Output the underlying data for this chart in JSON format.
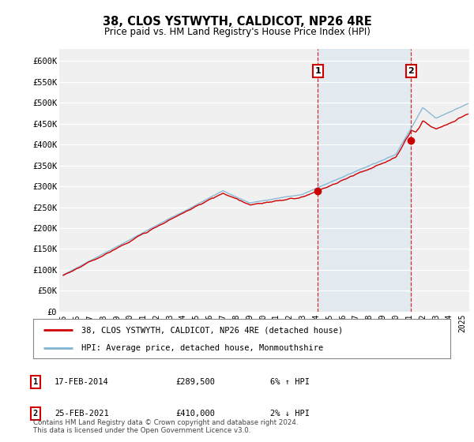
{
  "title": "38, CLOS YSTWYTH, CALDICOT, NP26 4RE",
  "subtitle": "Price paid vs. HM Land Registry's House Price Index (HPI)",
  "ylabel_ticks": [
    "£0",
    "£50K",
    "£100K",
    "£150K",
    "£200K",
    "£250K",
    "£300K",
    "£350K",
    "£400K",
    "£450K",
    "£500K",
    "£550K",
    "£600K"
  ],
  "ytick_values": [
    0,
    50000,
    100000,
    150000,
    200000,
    250000,
    300000,
    350000,
    400000,
    450000,
    500000,
    550000,
    600000
  ],
  "ylim": [
    0,
    630000
  ],
  "xlim_start": 1994.7,
  "xlim_end": 2025.5,
  "red_line_color": "#cc0000",
  "blue_line_color": "#7fb3d3",
  "shaded_color": "#c8dff0",
  "marker1_x": 2014.12,
  "marker1_y": 289500,
  "marker2_x": 2021.12,
  "marker2_y": 410000,
  "annotation1_date": "17-FEB-2014",
  "annotation1_price": "£289,500",
  "annotation1_hpi": "6% ↑ HPI",
  "annotation2_date": "25-FEB-2021",
  "annotation2_price": "£410,000",
  "annotation2_hpi": "2% ↓ HPI",
  "legend_line1": "38, CLOS YSTWYTH, CALDICOT, NP26 4RE (detached house)",
  "legend_line2": "HPI: Average price, detached house, Monmouthshire",
  "footer": "Contains HM Land Registry data © Crown copyright and database right 2024.\nThis data is licensed under the Open Government Licence v3.0.",
  "x_ticks": [
    1995,
    1996,
    1997,
    1998,
    1999,
    2000,
    2001,
    2002,
    2003,
    2004,
    2005,
    2006,
    2007,
    2008,
    2009,
    2010,
    2011,
    2012,
    2013,
    2014,
    2015,
    2016,
    2017,
    2018,
    2019,
    2020,
    2021,
    2022,
    2023,
    2024,
    2025
  ],
  "background_color": "#ffffff",
  "plot_bg_color": "#f0f0f0",
  "grid_color": "#ffffff"
}
